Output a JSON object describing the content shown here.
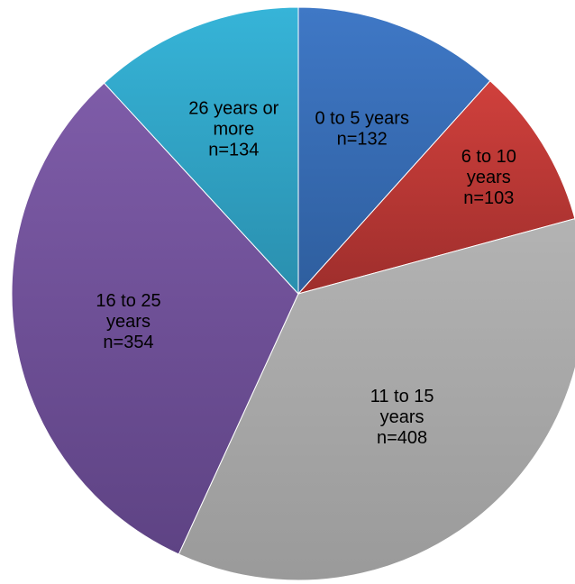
{
  "chart_data": {
    "type": "pie",
    "title": "",
    "start_angle_deg": 0,
    "direction": "clockwise",
    "slices": [
      {
        "category": "0 to 5 years",
        "value": 132,
        "value_label": "n=132",
        "label_lines": [
          "0 to 5 years",
          "n=132"
        ],
        "color": "#3F78C6",
        "color_dark": "#2E5E9E"
      },
      {
        "category": "6 to 10 years",
        "value": 103,
        "value_label": "n=103",
        "label_lines": [
          "6 to 10",
          "years",
          "n=103"
        ],
        "color": "#D0403C",
        "color_dark": "#9E2E2C"
      },
      {
        "category": "11 to 15 years",
        "value": 408,
        "value_label": "n=408",
        "label_lines": [
          "11 to 15",
          "years",
          "n=408"
        ],
        "color": "#B3B3B3",
        "color_dark": "#9A9A9A"
      },
      {
        "category": "16 to 25 years",
        "value": 354,
        "value_label": "n=354",
        "label_lines": [
          "16 to 25",
          "years",
          "n=354"
        ],
        "color": "#7E5CA8",
        "color_dark": "#5E4384"
      },
      {
        "category": "26 years or more",
        "value": 134,
        "value_label": "n=134",
        "label_lines": [
          "26 years or",
          "more",
          "n=134"
        ],
        "color": "#36B4D8",
        "color_dark": "#2A8FAE"
      }
    ],
    "legend": "none",
    "grid": false
  }
}
